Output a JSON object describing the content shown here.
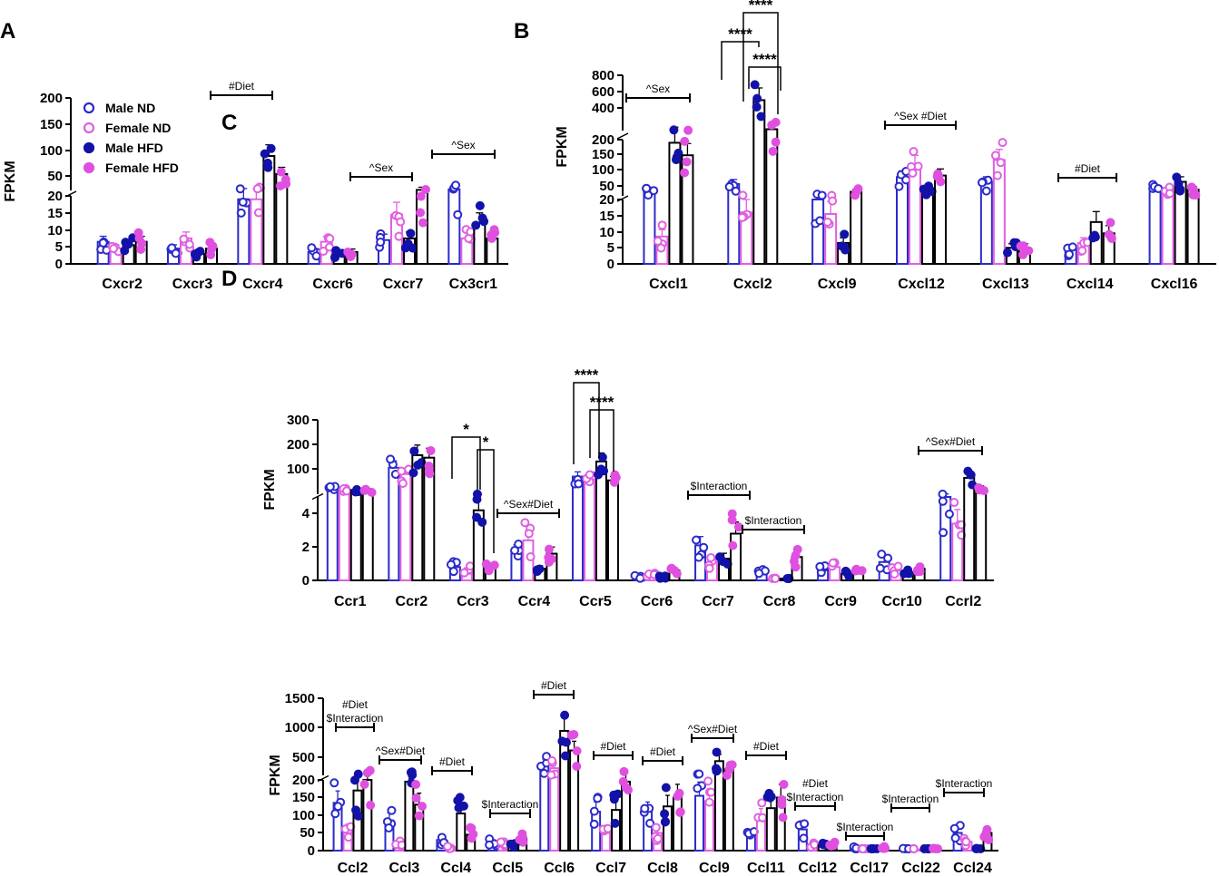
{
  "colors": {
    "male_nd": "#2b2bc8",
    "female_nd": "#e060e0",
    "male_hfd": "#1212a8",
    "female_hfd": "#e050e0",
    "axis": "#000000"
  },
  "y_axis_label": "FPKM",
  "legend": [
    {
      "label": "Male ND",
      "style": "open",
      "color": "#2b2bc8"
    },
    {
      "label": "Female ND",
      "style": "open",
      "color": "#e060e0"
    },
    {
      "label": "Male HFD",
      "style": "filled",
      "color": "#1212a8"
    },
    {
      "label": "Female HFD",
      "style": "filled",
      "color": "#e050e0"
    }
  ],
  "chart_data": [
    {
      "panel": "A",
      "type": "bar",
      "ylabel": "FPKM",
      "series_names": [
        "Male ND",
        "Female ND",
        "Male HFD",
        "Female HFD"
      ],
      "categories": [
        "Cxcr2",
        "Cxcr3",
        "Cxcr4",
        "Cxcr6",
        "Cxcr7",
        "Cx3cr1"
      ],
      "values": [
        [
          6.5,
          4.5,
          5.5,
          6.5
        ],
        [
          4.5,
          7.5,
          3,
          4.5
        ],
        [
          19,
          19,
          87,
          52
        ],
        [
          3.5,
          6.5,
          3,
          3.5
        ],
        [
          7,
          14.5,
          7.5,
          21
        ],
        [
          22,
          7.5,
          12,
          7.5
        ]
      ],
      "y_break": {
        "low_range": [
          0,
          20
        ],
        "high_range": [
          20,
          200
        ],
        "low_ticks": [
          0,
          5,
          10,
          15,
          20
        ],
        "high_ticks": [
          50,
          100,
          150,
          200
        ]
      },
      "annotations": [
        {
          "text": "#Diet",
          "from": 2,
          "to": 2
        },
        {
          "text": "^Sex",
          "from": 4,
          "to": 4
        },
        {
          "text": "^Sex",
          "from": 5,
          "to": 5
        }
      ]
    },
    {
      "panel": "B",
      "type": "bar",
      "ylabel": "FPKM",
      "series_names": [
        "Male ND",
        "Female ND",
        "Male HFD",
        "Female HFD"
      ],
      "categories": [
        "Cxcl1",
        "Cxcl2",
        "Cxcl9",
        "Cxcl12",
        "Cxcl13",
        "Cxcl14",
        "Cxcl16"
      ],
      "values": [
        [
          38,
          8.5,
          190,
          150
        ],
        [
          58,
          16,
          530,
          215
        ],
        [
          20,
          15.5,
          6.5,
          33
        ],
        [
          80,
          120,
          40,
          85
        ],
        [
          65,
          135,
          5,
          5
        ],
        [
          4.5,
          6.5,
          13,
          9.5
        ],
        [
          45,
          38,
          65,
          40
        ]
      ],
      "y_break": {
        "low_range": [
          0,
          20
        ],
        "mid_range": [
          20,
          200
        ],
        "high_range": [
          200,
          800
        ],
        "low_ticks": [
          0,
          5,
          10,
          15,
          20
        ],
        "mid_ticks": [
          50,
          100,
          150,
          200
        ],
        "high_ticks": [
          400,
          600,
          800
        ]
      },
      "annotations": [
        {
          "text": "^Sex",
          "from": 0,
          "to": 0
        },
        {
          "text": "^Sex #Diet",
          "from": 3,
          "to": 3
        },
        {
          "text": "#Diet",
          "from": 5,
          "to": 5
        }
      ],
      "significance": [
        {
          "text": "****",
          "category": "Cxcl2",
          "bars": [
            "Male ND",
            "Male HFD"
          ]
        },
        {
          "text": "****",
          "category": "Cxcl2",
          "bars": [
            "Female ND",
            "Female HFD"
          ]
        },
        {
          "text": "****",
          "category": "Cxcl2",
          "bars": [
            "Male HFD",
            "Female HFD"
          ]
        }
      ]
    },
    {
      "panel": "C",
      "type": "bar",
      "ylabel": "FPKM",
      "series_names": [
        "Male ND",
        "Female ND",
        "Male HFD",
        "Female HFD"
      ],
      "categories": [
        "Ccr1",
        "Ccr2",
        "Ccr3",
        "Ccr4",
        "Ccr5",
        "Ccr6",
        "Ccr7",
        "Ccr8",
        "Ccr9",
        "Ccr10",
        "Ccrl2"
      ],
      "values": [
        [
          25,
          20,
          22,
          22
        ],
        [
          110,
          85,
          160,
          150
        ],
        [
          0.8,
          0.6,
          4.2,
          0.7
        ],
        [
          1.7,
          2.4,
          0.7,
          1.6
        ],
        [
          75,
          60,
          135,
          60
        ],
        [
          0.2,
          0.3,
          0.2,
          0.6
        ],
        [
          2.1,
          1.1,
          1.3,
          2.8
        ],
        [
          0.6,
          0.1,
          0.1,
          1.4
        ],
        [
          0.7,
          0.8,
          0.4,
          0.6
        ],
        [
          1.1,
          0.6,
          0.5,
          0.7
        ],
        [
          5,
          3.4,
          70,
          30
        ]
      ],
      "y_break": {
        "low_range": [
          0,
          5
        ],
        "high_range": [
          5,
          300
        ],
        "low_ticks": [
          0,
          2,
          4
        ],
        "high_ticks": [
          100,
          200,
          300
        ]
      },
      "annotations": [
        {
          "text": "^Sex#Diet",
          "from": 3,
          "to": 3
        },
        {
          "text": "$Interaction",
          "from": 6,
          "to": 6
        },
        {
          "text": "$Interaction",
          "from": 7,
          "to": 7
        },
        {
          "text": "^Sex#Diet",
          "from": 10,
          "to": 10
        }
      ],
      "significance": [
        {
          "text": "*",
          "category": "Ccr3",
          "bars": [
            "Male ND",
            "Male HFD"
          ]
        },
        {
          "text": "*",
          "category": "Ccr3",
          "bars": [
            "Male HFD",
            "Female HFD"
          ]
        },
        {
          "text": "****",
          "category": "Ccr5",
          "bars": [
            "Male ND",
            "Male HFD"
          ]
        },
        {
          "text": "****",
          "category": "Ccr5",
          "bars": [
            "Male HFD",
            "Female HFD"
          ]
        }
      ]
    },
    {
      "panel": "D",
      "type": "bar",
      "ylabel": "FPKM",
      "series_names": [
        "Male ND",
        "Female ND",
        "Male HFD",
        "Female HFD"
      ],
      "categories": [
        "Ccl2",
        "Ccl3",
        "Ccl4",
        "Ccl5",
        "Ccl6",
        "Ccl7",
        "Ccl8",
        "Ccl9",
        "Ccl11",
        "Ccl12",
        "Ccl17",
        "Ccl22",
        "Ccl24"
      ],
      "values": [
        [
          135,
          60,
          170,
          200
        ],
        [
          85,
          20,
          195,
          130
        ],
        [
          30,
          10,
          105,
          45
        ],
        [
          25,
          20,
          15,
          35
        ],
        [
          380,
          320,
          950,
          620
        ],
        [
          110,
          50,
          115,
          195
        ],
        [
          110,
          50,
          125,
          150
        ],
        [
          155,
          140,
          440,
          300
        ],
        [
          45,
          95,
          120,
          150
        ],
        [
          60,
          15,
          15,
          20
        ],
        [
          8,
          5,
          3,
          8
        ],
        [
          5,
          3,
          3,
          5
        ],
        [
          50,
          25,
          5,
          50
        ]
      ],
      "y_break": {
        "low_range": [
          0,
          200
        ],
        "high_range": [
          200,
          1500
        ],
        "low_ticks": [
          0,
          50,
          100,
          150,
          200
        ],
        "high_ticks": [
          500,
          1000,
          1500
        ]
      },
      "annotations": [
        {
          "text": "#Diet\n$Interaction",
          "from": 0,
          "to": 0
        },
        {
          "text": "^Sex#Diet",
          "from": 1,
          "to": 1
        },
        {
          "text": "#Diet",
          "from": 2,
          "to": 2
        },
        {
          "text": "$Interaction",
          "from": 3,
          "to": 3
        },
        {
          "text": "#Diet",
          "from": 4,
          "to": 4
        },
        {
          "text": "#Diet",
          "from": 5,
          "to": 5
        },
        {
          "text": "#Diet",
          "from": 6,
          "to": 6
        },
        {
          "text": "^Sex#Diet",
          "from": 7,
          "to": 7
        },
        {
          "text": "#Diet",
          "from": 8,
          "to": 8
        },
        {
          "text": "#Diet\n$Interaction",
          "from": 9,
          "to": 9
        },
        {
          "text": "$Interaction",
          "from": 10,
          "to": 10
        },
        {
          "text": "$Interaction",
          "from": 11,
          "to": 11
        },
        {
          "text": "$Interaction",
          "from": 12,
          "to": 12
        }
      ]
    }
  ]
}
